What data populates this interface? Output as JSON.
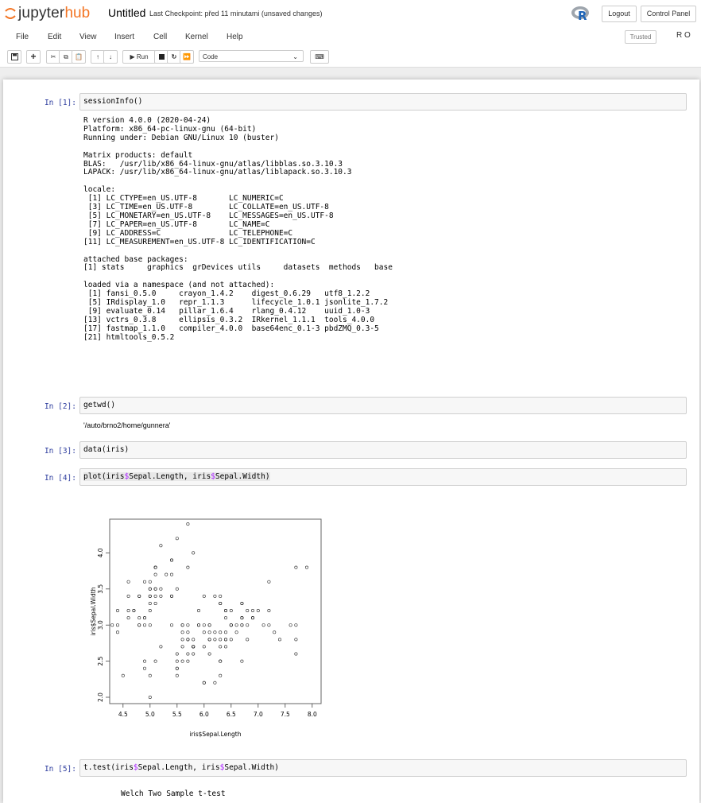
{
  "header": {
    "logo_text_1": "jupyter",
    "logo_text_2": "hub",
    "notebook_title": "Untitled",
    "checkpoint": "Last Checkpoint: před 11 minutami  (unsaved changes)",
    "kernel_logo": "R",
    "logout_label": "Logout",
    "control_panel_label": "Control Panel"
  },
  "menubar": {
    "items": [
      "File",
      "Edit",
      "View",
      "Insert",
      "Cell",
      "Kernel",
      "Help"
    ],
    "trusted": "Trusted",
    "kernel_indicator": "R O"
  },
  "toolbar": {
    "run_label": "▶ Run",
    "cell_type": "Code",
    "icons": [
      "save-icon",
      "plus-icon",
      "cut-icon",
      "copy-icon",
      "paste-icon",
      "arrow-up-icon",
      "arrow-down-icon",
      "stop-icon",
      "restart-icon",
      "fast-forward-icon",
      "keyboard-icon"
    ]
  },
  "cells": [
    {
      "prompt": "In [1]:",
      "code": "sessionInfo()",
      "output": "R version 4.0.0 (2020-04-24)\nPlatform: x86_64-pc-linux-gnu (64-bit)\nRunning under: Debian GNU/Linux 10 (buster)\n\nMatrix products: default\nBLAS:   /usr/lib/x86_64-linux-gnu/atlas/libblas.so.3.10.3\nLAPACK: /usr/lib/x86_64-linux-gnu/atlas/liblapack.so.3.10.3\n\nlocale:\n [1] LC_CTYPE=en_US.UTF-8       LC_NUMERIC=C              \n [3] LC_TIME=en_US.UTF-8        LC_COLLATE=en_US.UTF-8    \n [5] LC_MONETARY=en_US.UTF-8    LC_MESSAGES=en_US.UTF-8   \n [7] LC_PAPER=en_US.UTF-8       LC_NAME=C                 \n [9] LC_ADDRESS=C               LC_TELEPHONE=C            \n[11] LC_MEASUREMENT=en_US.UTF-8 LC_IDENTIFICATION=C       \n\nattached base packages:\n[1] stats     graphics  grDevices utils     datasets  methods   base     \n\nloaded via a namespace (and not attached):\n [1] fansi_0.5.0     crayon_1.4.2    digest_0.6.29   utf8_1.2.2     \n [5] IRdisplay_1.0   repr_1.1.3      lifecycle_1.0.1 jsonlite_1.7.2 \n [9] evaluate_0.14   pillar_1.6.4    rlang_0.4.12    uuid_1.0-3     \n[13] vctrs_0.3.8     ellipsis_0.3.2  IRkernel_1.1.1  tools_4.0.0    \n[17] fastmap_1.1.0   compiler_4.0.0  base64enc_0.1-3 pbdZMQ_0.3-5   \n[21] htmltools_0.5.2"
    },
    {
      "prompt": "In [2]:",
      "code": "getwd()",
      "output": "'/auto/brno2/home/gunnera'"
    },
    {
      "prompt": "In [3]:",
      "code": "data(iris)"
    },
    {
      "prompt": "In [4]:",
      "code_parts": [
        "plot(iris",
        "$",
        "Sepal.Length, iris",
        "$",
        "Sepal.Width)"
      ]
    },
    {
      "prompt": "In [5]:",
      "code_parts": [
        "t.test(iris",
        "$",
        "Sepal.Length, iris",
        "$",
        "Sepal.Width)"
      ],
      "output": "Welch Two Sample t-test"
    }
  ],
  "chart_data": {
    "type": "scatter",
    "xlabel": "iris$Sepal.Length",
    "ylabel": "iris$Sepal.Width",
    "xlim": [
      4.3,
      7.9
    ],
    "ylim": [
      2.0,
      4.4
    ],
    "xticks": [
      "4.5",
      "5.0",
      "5.5",
      "6.0",
      "6.5",
      "7.0",
      "7.5",
      "8.0"
    ],
    "yticks": [
      "2.0",
      "2.5",
      "3.0",
      "3.5",
      "4.0"
    ],
    "points": [
      [
        5.1,
        3.5
      ],
      [
        4.9,
        3.0
      ],
      [
        4.7,
        3.2
      ],
      [
        4.6,
        3.1
      ],
      [
        5.0,
        3.6
      ],
      [
        5.4,
        3.9
      ],
      [
        4.6,
        3.4
      ],
      [
        5.0,
        3.4
      ],
      [
        4.4,
        2.9
      ],
      [
        4.9,
        3.1
      ],
      [
        5.4,
        3.7
      ],
      [
        4.8,
        3.4
      ],
      [
        4.8,
        3.0
      ],
      [
        4.3,
        3.0
      ],
      [
        5.8,
        4.0
      ],
      [
        5.7,
        4.4
      ],
      [
        5.4,
        3.9
      ],
      [
        5.1,
        3.5
      ],
      [
        5.7,
        3.8
      ],
      [
        5.1,
        3.8
      ],
      [
        5.4,
        3.4
      ],
      [
        5.1,
        3.7
      ],
      [
        4.6,
        3.6
      ],
      [
        5.1,
        3.3
      ],
      [
        4.8,
        3.4
      ],
      [
        5.0,
        3.0
      ],
      [
        5.0,
        3.4
      ],
      [
        5.2,
        3.5
      ],
      [
        5.2,
        3.4
      ],
      [
        4.7,
        3.2
      ],
      [
        4.8,
        3.1
      ],
      [
        5.4,
        3.4
      ],
      [
        5.2,
        4.1
      ],
      [
        5.5,
        4.2
      ],
      [
        4.9,
        3.1
      ],
      [
        5.0,
        3.2
      ],
      [
        5.5,
        3.5
      ],
      [
        4.9,
        3.6
      ],
      [
        4.4,
        3.0
      ],
      [
        5.1,
        3.4
      ],
      [
        5.0,
        3.5
      ],
      [
        4.5,
        2.3
      ],
      [
        4.4,
        3.2
      ],
      [
        5.0,
        3.5
      ],
      [
        5.1,
        3.8
      ],
      [
        4.8,
        3.0
      ],
      [
        5.1,
        3.8
      ],
      [
        4.6,
        3.2
      ],
      [
        5.3,
        3.7
      ],
      [
        5.0,
        3.3
      ],
      [
        7.0,
        3.2
      ],
      [
        6.4,
        3.2
      ],
      [
        6.9,
        3.1
      ],
      [
        5.5,
        2.3
      ],
      [
        6.5,
        2.8
      ],
      [
        5.7,
        2.8
      ],
      [
        6.3,
        3.3
      ],
      [
        4.9,
        2.4
      ],
      [
        6.6,
        2.9
      ],
      [
        5.2,
        2.7
      ],
      [
        5.0,
        2.0
      ],
      [
        5.9,
        3.0
      ],
      [
        6.0,
        2.2
      ],
      [
        6.1,
        2.9
      ],
      [
        5.6,
        2.9
      ],
      [
        6.7,
        3.1
      ],
      [
        5.6,
        3.0
      ],
      [
        5.8,
        2.7
      ],
      [
        6.2,
        2.2
      ],
      [
        5.6,
        2.5
      ],
      [
        5.9,
        3.2
      ],
      [
        6.1,
        2.8
      ],
      [
        6.3,
        2.5
      ],
      [
        6.1,
        2.8
      ],
      [
        6.4,
        2.9
      ],
      [
        6.6,
        3.0
      ],
      [
        6.8,
        2.8
      ],
      [
        6.7,
        3.0
      ],
      [
        6.0,
        2.9
      ],
      [
        5.7,
        2.6
      ],
      [
        5.5,
        2.4
      ],
      [
        5.5,
        2.4
      ],
      [
        5.8,
        2.7
      ],
      [
        6.0,
        2.7
      ],
      [
        5.4,
        3.0
      ],
      [
        6.0,
        3.4
      ],
      [
        6.7,
        3.1
      ],
      [
        6.3,
        2.3
      ],
      [
        5.6,
        3.0
      ],
      [
        5.5,
        2.5
      ],
      [
        5.5,
        2.6
      ],
      [
        6.1,
        3.0
      ],
      [
        5.8,
        2.6
      ],
      [
        5.0,
        2.3
      ],
      [
        5.6,
        2.7
      ],
      [
        5.7,
        3.0
      ],
      [
        5.7,
        2.9
      ],
      [
        6.2,
        2.9
      ],
      [
        5.1,
        2.5
      ],
      [
        5.7,
        2.8
      ],
      [
        6.3,
        3.3
      ],
      [
        5.8,
        2.7
      ],
      [
        7.1,
        3.0
      ],
      [
        6.3,
        2.9
      ],
      [
        6.5,
        3.0
      ],
      [
        7.6,
        3.0
      ],
      [
        4.9,
        2.5
      ],
      [
        7.3,
        2.9
      ],
      [
        6.7,
        2.5
      ],
      [
        7.2,
        3.6
      ],
      [
        6.5,
        3.2
      ],
      [
        6.4,
        2.7
      ],
      [
        6.8,
        3.0
      ],
      [
        5.7,
        2.5
      ],
      [
        5.8,
        2.8
      ],
      [
        6.4,
        3.2
      ],
      [
        6.5,
        3.0
      ],
      [
        7.7,
        3.8
      ],
      [
        7.7,
        2.6
      ],
      [
        6.0,
        2.2
      ],
      [
        6.9,
        3.2
      ],
      [
        5.6,
        2.8
      ],
      [
        7.7,
        2.8
      ],
      [
        6.3,
        2.7
      ],
      [
        6.7,
        3.3
      ],
      [
        7.2,
        3.2
      ],
      [
        6.2,
        2.8
      ],
      [
        6.1,
        3.0
      ],
      [
        6.4,
        2.8
      ],
      [
        7.2,
        3.0
      ],
      [
        7.4,
        2.8
      ],
      [
        7.9,
        3.8
      ],
      [
        6.4,
        2.8
      ],
      [
        6.3,
        2.8
      ],
      [
        6.1,
        2.6
      ],
      [
        7.7,
        3.0
      ],
      [
        6.3,
        3.4
      ],
      [
        6.4,
        3.1
      ],
      [
        6.0,
        3.0
      ],
      [
        6.9,
        3.1
      ],
      [
        6.7,
        3.1
      ],
      [
        6.9,
        3.1
      ],
      [
        5.8,
        2.7
      ],
      [
        6.8,
        3.2
      ],
      [
        6.7,
        3.3
      ],
      [
        6.7,
        3.0
      ],
      [
        6.3,
        2.5
      ],
      [
        6.5,
        3.0
      ],
      [
        6.2,
        3.4
      ],
      [
        5.9,
        3.0
      ]
    ]
  }
}
